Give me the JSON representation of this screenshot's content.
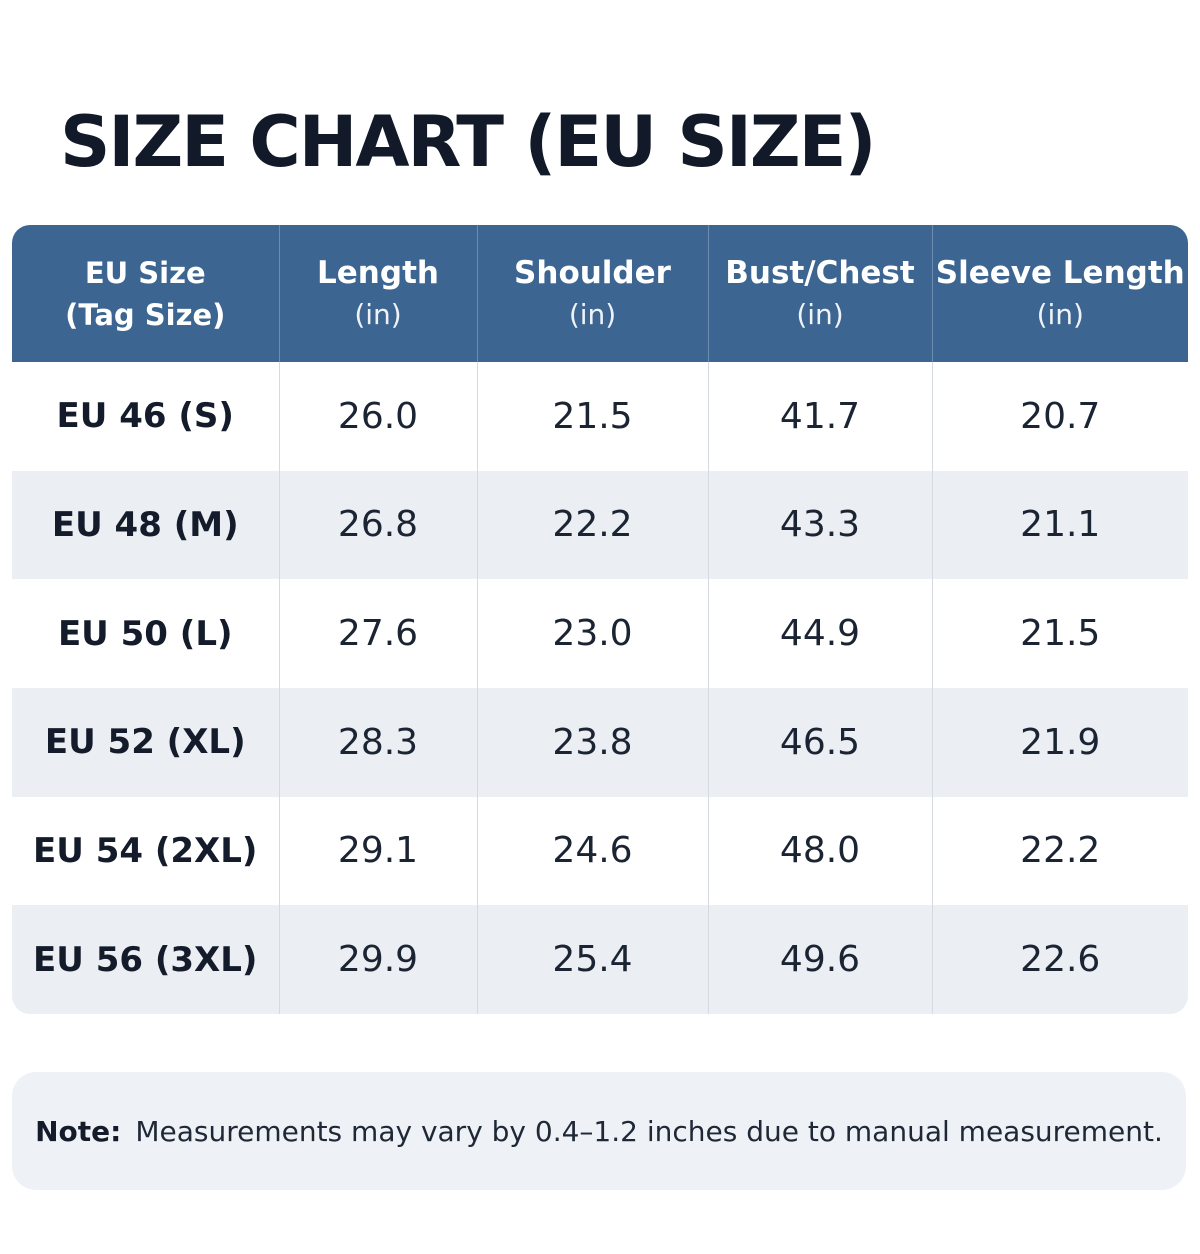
{
  "title": "SIZE CHART (EU SIZE)",
  "table": {
    "headers": [
      {
        "main": "EU Size",
        "sub": "(Tag Size)"
      },
      {
        "main": "Length",
        "sub": "(in)"
      },
      {
        "main": "Shoulder",
        "sub": "(in)"
      },
      {
        "main": "Bust/Chest",
        "sub": "(in)"
      },
      {
        "main": "Sleeve Length",
        "sub": "(in)"
      }
    ],
    "rows": [
      [
        "EU 46 (S)",
        "26.0",
        "21.5",
        "41.7",
        "20.7"
      ],
      [
        "EU 48 (M)",
        "26.8",
        "22.2",
        "43.3",
        "21.1"
      ],
      [
        "EU 50 (L)",
        "27.6",
        "23.0",
        "44.9",
        "21.5"
      ],
      [
        "EU 52 (XL)",
        "28.3",
        "23.8",
        "46.5",
        "21.9"
      ],
      [
        "EU 54 (2XL)",
        "29.1",
        "24.6",
        "48.0",
        "22.2"
      ],
      [
        "EU 56 (3XL)",
        "29.9",
        "25.4",
        "49.6",
        "22.6"
      ]
    ]
  },
  "note": {
    "label": "Note:",
    "text": "Measurements may vary by 0.4–1.2 inches due to manual measurement."
  },
  "colors": {
    "header_bg": "#3d6591",
    "row_alt_bg": "#ebeef2",
    "note_bg": "#eef1f5",
    "title_text": "#121a2a"
  }
}
